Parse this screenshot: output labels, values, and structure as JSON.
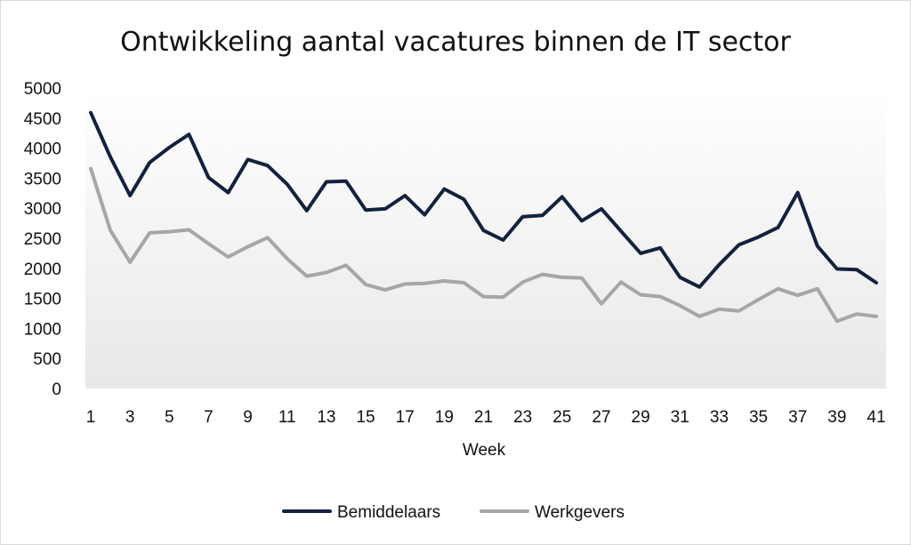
{
  "chart_data": {
    "type": "line",
    "title": "Ontwikkeling aantal vacatures binnen de IT sector",
    "xlabel": "Week",
    "ylabel": "",
    "ylim": [
      0,
      5000
    ],
    "y_ticks": [
      "0",
      "500",
      "1000",
      "1500",
      "2000",
      "2500",
      "3000",
      "3500",
      "4000",
      "4500",
      "5000"
    ],
    "x": [
      1,
      2,
      3,
      4,
      5,
      6,
      7,
      8,
      9,
      10,
      11,
      12,
      13,
      14,
      15,
      16,
      17,
      18,
      19,
      20,
      21,
      22,
      23,
      24,
      25,
      26,
      27,
      28,
      29,
      30,
      31,
      32,
      33,
      34,
      35,
      36,
      37,
      38,
      39,
      40,
      41
    ],
    "x_tick_labels": [
      "1",
      "3",
      "5",
      "7",
      "9",
      "11",
      "13",
      "15",
      "17",
      "19",
      "21",
      "23",
      "25",
      "27",
      "29",
      "31",
      "33",
      "35",
      "37",
      "39",
      "41"
    ],
    "legend": "bottom",
    "grid": false,
    "series": [
      {
        "name": "Bemiddelaars",
        "color": "#14213d",
        "values": [
          4590,
          3850,
          3210,
          3760,
          4010,
          4230,
          3510,
          3260,
          3810,
          3710,
          3400,
          2960,
          3440,
          3450,
          2970,
          2990,
          3210,
          2890,
          3320,
          3150,
          2630,
          2470,
          2860,
          2880,
          3190,
          2790,
          2990,
          2620,
          2250,
          2340,
          1850,
          1690,
          2060,
          2390,
          2520,
          2680,
          3260,
          2370,
          1990,
          1980,
          1760
        ]
      },
      {
        "name": "Werkgevers",
        "color": "#a6a6a6",
        "values": [
          3660,
          2630,
          2100,
          2590,
          2610,
          2640,
          2410,
          2190,
          2360,
          2510,
          2160,
          1870,
          1930,
          2050,
          1730,
          1640,
          1740,
          1750,
          1790,
          1760,
          1530,
          1520,
          1770,
          1900,
          1850,
          1840,
          1410,
          1770,
          1560,
          1530,
          1380,
          1200,
          1320,
          1290,
          1480,
          1660,
          1550,
          1660,
          1120,
          1240,
          1200
        ]
      }
    ]
  }
}
